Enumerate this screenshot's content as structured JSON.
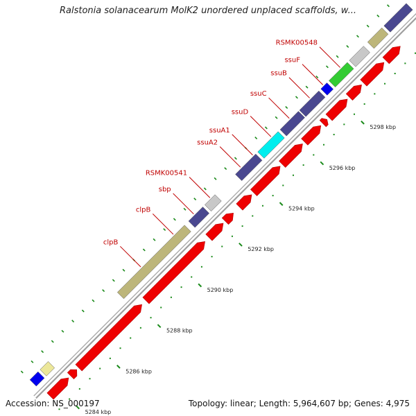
{
  "title": "Ralstonia solanacearum MolK2 unordered unplaced scaffolds, w...",
  "footer": {
    "accession": "Accession: NS_000197",
    "summary": "Topology: linear; Length: 5,964,607 bp; Genes: 4,975"
  },
  "colors": {
    "forward_gene": "#ee0000",
    "navy": "#4a4890",
    "olive": "#bdb67a",
    "gray": "#c8c8c8",
    "cyan": "#00eeee",
    "green": "#33cc33",
    "blue": "#0000ee",
    "pale_yellow": "#ece79a",
    "backbone": "#a0a0a0",
    "tick": "#1a8a1a",
    "label": "#c00000"
  },
  "scale": {
    "unit": "kbp",
    "major_ticks": [
      {
        "pos": 5284,
        "label": "5284 kbp"
      },
      {
        "pos": 5286,
        "label": "5286 kbp"
      },
      {
        "pos": 5288,
        "label": "5288 kbp"
      },
      {
        "pos": 5290,
        "label": "5290 kbp"
      },
      {
        "pos": 5292,
        "label": "5292 kbp"
      },
      {
        "pos": 5294,
        "label": "5294 kbp"
      },
      {
        "pos": 5296,
        "label": "5296 kbp"
      },
      {
        "pos": 5298,
        "label": "5298 kbp"
      }
    ]
  },
  "genes": [
    {
      "strand": "forward",
      "start": 5283.6,
      "end": 5284.5,
      "color": "forward_gene"
    },
    {
      "strand": "forward",
      "start": 5284.6,
      "end": 5284.9,
      "color": "forward_gene"
    },
    {
      "strand": "forward",
      "start": 5285.0,
      "end": 5288.1,
      "color": "forward_gene"
    },
    {
      "strand": "forward",
      "start": 5288.3,
      "end": 5291.2,
      "color": "forward_gene"
    },
    {
      "strand": "forward",
      "start": 5291.4,
      "end": 5292.1,
      "color": "forward_gene"
    },
    {
      "strand": "forward",
      "start": 5292.2,
      "end": 5292.6,
      "color": "forward_gene"
    },
    {
      "strand": "forward",
      "start": 5292.9,
      "end": 5293.5,
      "color": "forward_gene"
    },
    {
      "strand": "forward",
      "start": 5293.6,
      "end": 5294.9,
      "color": "forward_gene"
    },
    {
      "strand": "forward",
      "start": 5295.0,
      "end": 5296.0,
      "color": "forward_gene"
    },
    {
      "strand": "forward",
      "start": 5296.1,
      "end": 5296.9,
      "color": "forward_gene"
    },
    {
      "strand": "forward",
      "start": 5297.0,
      "end": 5297.2,
      "color": "forward_gene"
    },
    {
      "strand": "forward",
      "start": 5297.3,
      "end": 5298.2,
      "color": "forward_gene"
    },
    {
      "strand": "forward",
      "start": 5298.3,
      "end": 5298.9,
      "color": "forward_gene"
    },
    {
      "strand": "forward",
      "start": 5299.0,
      "end": 5300.0,
      "color": "forward_gene"
    },
    {
      "strand": "forward",
      "start": 5300.1,
      "end": 5300.8,
      "color": "forward_gene"
    },
    {
      "strand": "reverse",
      "start": 5283.5,
      "end": 5283.9,
      "color": "blue"
    },
    {
      "strand": "reverse",
      "start": 5284.0,
      "end": 5284.4,
      "color": "pale_yellow"
    },
    {
      "strand": "reverse",
      "start": 5287.8,
      "end": 5291.1,
      "color": "olive"
    },
    {
      "strand": "reverse",
      "start": 5291.3,
      "end": 5292.0,
      "color": "navy"
    },
    {
      "strand": "reverse",
      "start": 5292.1,
      "end": 5292.6,
      "color": "gray"
    },
    {
      "strand": "reverse",
      "start": 5293.6,
      "end": 5294.6,
      "color": "navy"
    },
    {
      "strand": "reverse",
      "start": 5294.7,
      "end": 5295.7,
      "color": "cyan"
    },
    {
      "strand": "reverse",
      "start": 5295.8,
      "end": 5296.7,
      "color": "navy"
    },
    {
      "strand": "reverse",
      "start": 5296.75,
      "end": 5297.7,
      "color": "navy"
    },
    {
      "strand": "reverse",
      "start": 5297.8,
      "end": 5298.1,
      "color": "blue"
    },
    {
      "strand": "reverse",
      "start": 5298.2,
      "end": 5299.1,
      "color": "green"
    },
    {
      "strand": "reverse",
      "start": 5299.2,
      "end": 5299.9,
      "color": "gray"
    },
    {
      "strand": "reverse",
      "start": 5300.1,
      "end": 5300.8,
      "color": "olive"
    },
    {
      "strand": "reverse",
      "start": 5300.9,
      "end": 5302.0,
      "color": "navy"
    }
  ],
  "gene_labels": [
    {
      "text": "clpB",
      "pos": 5289.0
    },
    {
      "text": "clpB",
      "pos": 5290.6
    },
    {
      "text": "sbp",
      "pos": 5291.6
    },
    {
      "text": "RSMK00541",
      "pos": 5292.4
    },
    {
      "text": "ssuA2",
      "pos": 5293.9
    },
    {
      "text": "ssuA1",
      "pos": 5294.5
    },
    {
      "text": "ssuD",
      "pos": 5295.4
    },
    {
      "text": "ssuC",
      "pos": 5296.3
    },
    {
      "text": "ssuB",
      "pos": 5297.3
    },
    {
      "text": "ssuF",
      "pos": 5297.95
    },
    {
      "text": "RSMK00548",
      "pos": 5298.8
    }
  ]
}
